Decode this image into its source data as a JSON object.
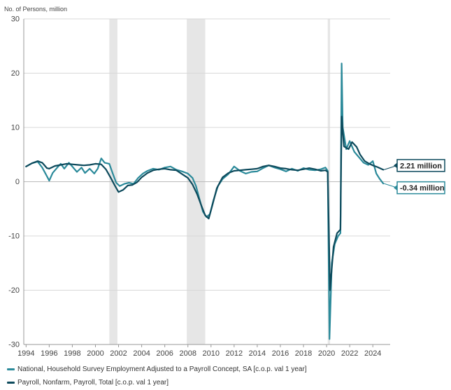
{
  "chart_data": {
    "type": "line",
    "ylabel": "No. of Persons, million",
    "ylim": [
      -30,
      30
    ],
    "y_ticks": [
      "-30",
      "-20",
      "-10",
      "0",
      "10",
      "20",
      "30"
    ],
    "xlim": [
      1993.8,
      2025.5
    ],
    "x_ticks": [
      "1994",
      "1996",
      "1998",
      "2000",
      "2002",
      "2004",
      "2006",
      "2008",
      "2010",
      "2012",
      "2014",
      "2016",
      "2018",
      "2020",
      "2022",
      "2024"
    ],
    "grid": true,
    "recessions": [
      [
        2001.2,
        2001.9
      ],
      [
        2007.9,
        2009.5
      ],
      [
        2020.1,
        2020.3
      ]
    ],
    "legend_position": "bottom",
    "series": [
      {
        "name": "National, Household Survey Employment Adjusted to a Payroll Concept, SA [c.o.p. val 1 year]",
        "color": "#2b8a9a",
        "end_label": "-0.34 million",
        "points": [
          [
            1994.0,
            2.8
          ],
          [
            1994.5,
            3.4
          ],
          [
            1995.0,
            3.7
          ],
          [
            1995.4,
            2.6
          ],
          [
            1995.8,
            1.0
          ],
          [
            1996.0,
            0.2
          ],
          [
            1996.3,
            1.6
          ],
          [
            1996.7,
            2.6
          ],
          [
            1997.0,
            3.3
          ],
          [
            1997.3,
            2.4
          ],
          [
            1997.7,
            3.5
          ],
          [
            1998.0,
            2.8
          ],
          [
            1998.4,
            1.8
          ],
          [
            1998.8,
            2.6
          ],
          [
            1999.1,
            1.6
          ],
          [
            1999.5,
            2.4
          ],
          [
            1999.9,
            1.5
          ],
          [
            2000.2,
            2.4
          ],
          [
            2000.5,
            4.3
          ],
          [
            2000.8,
            3.5
          ],
          [
            2001.2,
            3.3
          ],
          [
            2001.5,
            1.5
          ],
          [
            2001.8,
            -0.2
          ],
          [
            2002.1,
            -0.8
          ],
          [
            2002.5,
            -0.4
          ],
          [
            2002.9,
            -0.2
          ],
          [
            2003.3,
            -0.4
          ],
          [
            2003.7,
            0.7
          ],
          [
            2004.1,
            1.5
          ],
          [
            2004.5,
            2.0
          ],
          [
            2005.0,
            2.4
          ],
          [
            2005.5,
            2.2
          ],
          [
            2006.0,
            2.6
          ],
          [
            2006.5,
            2.8
          ],
          [
            2007.0,
            2.2
          ],
          [
            2007.5,
            1.9
          ],
          [
            2008.0,
            1.5
          ],
          [
            2008.4,
            0.7
          ],
          [
            2008.7,
            -0.8
          ],
          [
            2009.0,
            -3.2
          ],
          [
            2009.3,
            -5.5
          ],
          [
            2009.6,
            -6.5
          ],
          [
            2009.9,
            -6.0
          ],
          [
            2010.2,
            -3.5
          ],
          [
            2010.6,
            -0.8
          ],
          [
            2011.0,
            0.5
          ],
          [
            2011.5,
            1.4
          ],
          [
            2012.0,
            2.8
          ],
          [
            2012.5,
            2.0
          ],
          [
            2013.0,
            1.5
          ],
          [
            2013.5,
            1.8
          ],
          [
            2014.0,
            1.9
          ],
          [
            2014.5,
            2.5
          ],
          [
            2015.0,
            3.0
          ],
          [
            2015.5,
            2.6
          ],
          [
            2016.0,
            2.3
          ],
          [
            2016.5,
            1.9
          ],
          [
            2017.0,
            2.4
          ],
          [
            2017.5,
            2.0
          ],
          [
            2018.0,
            2.5
          ],
          [
            2018.5,
            2.2
          ],
          [
            2019.0,
            2.1
          ],
          [
            2019.5,
            2.3
          ],
          [
            2019.9,
            2.6
          ],
          [
            2020.1,
            2.0
          ],
          [
            2020.25,
            -29.0
          ],
          [
            2020.45,
            -15.0
          ],
          [
            2020.7,
            -11.5
          ],
          [
            2021.0,
            -10.0
          ],
          [
            2021.2,
            -9.5
          ],
          [
            2021.3,
            21.8
          ],
          [
            2021.4,
            10.0
          ],
          [
            2021.7,
            6.0
          ],
          [
            2022.0,
            7.5
          ],
          [
            2022.4,
            5.5
          ],
          [
            2022.8,
            4.5
          ],
          [
            2023.2,
            3.5
          ],
          [
            2023.6,
            3.1
          ],
          [
            2024.0,
            3.8
          ],
          [
            2024.3,
            1.5
          ],
          [
            2024.6,
            0.5
          ],
          [
            2024.9,
            -0.34
          ]
        ]
      },
      {
        "name": "Payroll, Nonfarm, Payroll, Total [c.o.p. val 1 year]",
        "color": "#0d4a5c",
        "end_label": "2.21 million",
        "points": [
          [
            1994.0,
            2.8
          ],
          [
            1994.5,
            3.4
          ],
          [
            1995.0,
            3.8
          ],
          [
            1995.4,
            3.5
          ],
          [
            1995.8,
            2.5
          ],
          [
            1996.0,
            2.4
          ],
          [
            1996.5,
            2.9
          ],
          [
            1997.0,
            3.1
          ],
          [
            1997.5,
            3.3
          ],
          [
            1998.0,
            3.2
          ],
          [
            1998.5,
            3.1
          ],
          [
            1999.0,
            3.0
          ],
          [
            1999.5,
            3.1
          ],
          [
            2000.0,
            3.3
          ],
          [
            2000.5,
            3.2
          ],
          [
            2000.9,
            2.3
          ],
          [
            2001.3,
            0.8
          ],
          [
            2001.7,
            -0.8
          ],
          [
            2002.0,
            -1.9
          ],
          [
            2002.4,
            -1.5
          ],
          [
            2002.8,
            -0.7
          ],
          [
            2003.2,
            -0.6
          ],
          [
            2003.6,
            -0.1
          ],
          [
            2004.0,
            0.8
          ],
          [
            2004.5,
            1.6
          ],
          [
            2005.0,
            2.1
          ],
          [
            2005.5,
            2.3
          ],
          [
            2006.0,
            2.4
          ],
          [
            2006.5,
            2.2
          ],
          [
            2007.0,
            2.1
          ],
          [
            2007.5,
            1.4
          ],
          [
            2008.0,
            0.7
          ],
          [
            2008.4,
            -0.5
          ],
          [
            2008.8,
            -2.3
          ],
          [
            2009.2,
            -4.6
          ],
          [
            2009.5,
            -6.2
          ],
          [
            2009.8,
            -6.8
          ],
          [
            2010.1,
            -4.5
          ],
          [
            2010.5,
            -1.2
          ],
          [
            2011.0,
            0.8
          ],
          [
            2011.5,
            1.6
          ],
          [
            2012.0,
            2.0
          ],
          [
            2012.5,
            2.1
          ],
          [
            2013.0,
            2.2
          ],
          [
            2013.5,
            2.3
          ],
          [
            2014.0,
            2.4
          ],
          [
            2014.5,
            2.8
          ],
          [
            2015.0,
            3.0
          ],
          [
            2015.5,
            2.8
          ],
          [
            2016.0,
            2.5
          ],
          [
            2016.5,
            2.4
          ],
          [
            2017.0,
            2.2
          ],
          [
            2017.5,
            2.1
          ],
          [
            2018.0,
            2.3
          ],
          [
            2018.5,
            2.5
          ],
          [
            2019.0,
            2.3
          ],
          [
            2019.5,
            2.0
          ],
          [
            2019.9,
            2.1
          ],
          [
            2020.1,
            1.8
          ],
          [
            2020.3,
            -20.0
          ],
          [
            2020.6,
            -12.0
          ],
          [
            2020.9,
            -9.5
          ],
          [
            2021.2,
            -8.8
          ],
          [
            2021.3,
            12.0
          ],
          [
            2021.5,
            6.5
          ],
          [
            2021.9,
            6.0
          ],
          [
            2022.2,
            7.3
          ],
          [
            2022.6,
            6.4
          ],
          [
            2022.9,
            5.0
          ],
          [
            2023.3,
            3.8
          ],
          [
            2023.7,
            3.3
          ],
          [
            2024.0,
            3.0
          ],
          [
            2024.4,
            2.7
          ],
          [
            2024.9,
            2.21
          ]
        ]
      }
    ]
  }
}
